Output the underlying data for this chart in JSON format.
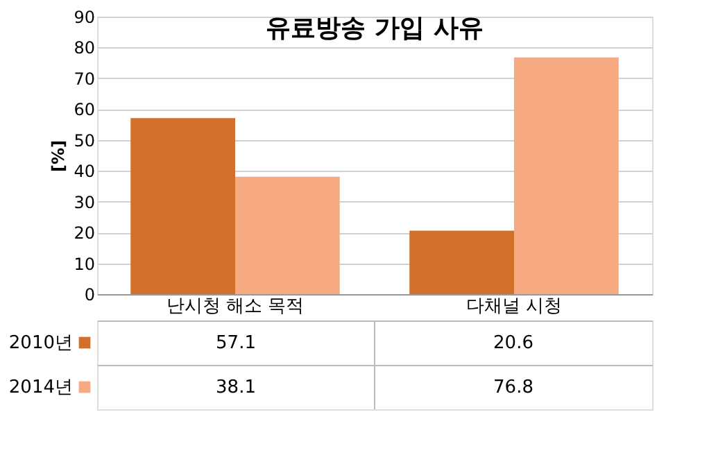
{
  "chart_data": {
    "type": "bar",
    "title": "유료방송 가입 사유",
    "ylabel": "[%]",
    "categories": [
      "난시청 해소 목적",
      "다채널 시청"
    ],
    "series": [
      {
        "name": "2010년",
        "color": "#d2702a",
        "values": [
          57.1,
          20.6
        ]
      },
      {
        "name": "2014년",
        "color": "#f7a981",
        "values": [
          38.1,
          76.8
        ]
      }
    ],
    "ylim": [
      0,
      90
    ],
    "yticks": [
      0,
      10,
      20,
      30,
      40,
      50,
      60,
      70,
      80,
      90
    ],
    "grid": "y",
    "data_labels": true,
    "legend": "bottom left"
  }
}
